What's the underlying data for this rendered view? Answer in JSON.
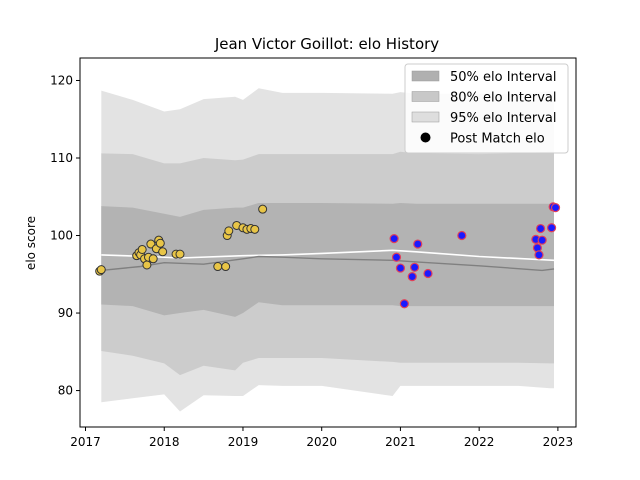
{
  "chart_data": {
    "type": "line",
    "title": "Jean Victor Goillot: elo History",
    "xlabel": "",
    "ylabel": "elo score",
    "xlim": [
      2016.93,
      2023.23
    ],
    "ylim": [
      75.3,
      122.9
    ],
    "x_ticks": [
      2017,
      2018,
      2019,
      2020,
      2021,
      2022,
      2023
    ],
    "y_ticks": [
      80,
      90,
      100,
      110,
      120
    ],
    "grid": false,
    "legend_position": "top-right",
    "legend": [
      {
        "label": "50% elo Interval",
        "kind": "band",
        "color": "#b0b0b0"
      },
      {
        "label": "80% elo Interval",
        "kind": "band",
        "color": "#c8c8c8"
      },
      {
        "label": "95% elo Interval",
        "kind": "band",
        "color": "#dedede"
      },
      {
        "label": "Post Match elo",
        "kind": "marker",
        "color": "#000000"
      }
    ],
    "colors": {
      "band_95": "#e3e3e3",
      "band_80": "#cccccc",
      "band_50": "#b3b3b3",
      "mean_line": "#ffffff",
      "median_line": "#808080",
      "early_marker_fill": "#e8c547",
      "early_marker_edge": "#333333",
      "late_marker_fill": "#1a1aff",
      "late_marker_edge": "#e0405a"
    },
    "bands": {
      "x": [
        2017.2,
        2017.6,
        2018.0,
        2018.2,
        2018.5,
        2018.9,
        2019.0,
        2019.2,
        2019.5,
        2020.0,
        2020.9,
        2021.0,
        2021.2,
        2022.0,
        2022.5,
        2022.9,
        2022.95
      ],
      "p95_hi": [
        118.7,
        117.5,
        116.0,
        116.3,
        117.6,
        117.9,
        117.5,
        119.0,
        118.4,
        118.4,
        118.3,
        118.5,
        118.3,
        118.3,
        118.3,
        118.6,
        118.6
      ],
      "p80_hi": [
        110.6,
        110.5,
        109.3,
        109.3,
        110.0,
        109.7,
        109.8,
        110.5,
        110.5,
        110.5,
        110.5,
        110.8,
        110.6,
        110.5,
        110.6,
        110.8,
        110.8
      ],
      "p50_hi": [
        103.8,
        103.6,
        102.8,
        102.4,
        103.3,
        103.6,
        103.6,
        104.2,
        104.2,
        104.2,
        104.1,
        104.2,
        104.1,
        104.1,
        104.1,
        104.1,
        104.1
      ],
      "p50_lo": [
        91.1,
        90.9,
        89.7,
        90.0,
        90.4,
        89.5,
        90.0,
        91.4,
        91.0,
        91.0,
        91.0,
        90.9,
        90.9,
        90.9,
        90.9,
        90.9,
        90.9
      ],
      "p80_lo": [
        85.1,
        84.5,
        83.5,
        82.0,
        83.2,
        82.6,
        83.6,
        84.2,
        84.2,
        84.2,
        83.7,
        83.6,
        83.6,
        83.6,
        83.6,
        83.5,
        83.5
      ],
      "p95_lo": [
        78.5,
        79.0,
        79.5,
        77.3,
        79.4,
        79.3,
        79.3,
        80.7,
        80.6,
        80.6,
        79.3,
        80.6,
        80.6,
        80.6,
        80.6,
        80.3,
        80.3
      ]
    },
    "series": [
      {
        "line": "mean",
        "x": [
          2017.2,
          2017.8,
          2018.2,
          2019.0,
          2019.5,
          2020.0,
          2020.9,
          2021.2,
          2022.0,
          2022.95
        ],
        "values": [
          97.5,
          97.3,
          97.1,
          97.4,
          97.5,
          97.7,
          98.1,
          97.9,
          97.3,
          96.8
        ]
      },
      {
        "line": "median",
        "x": [
          2017.2,
          2017.7,
          2018.0,
          2018.5,
          2019.0,
          2019.2,
          2019.5,
          2020.0,
          2020.9,
          2021.2,
          2022.0,
          2022.8,
          2022.95
        ],
        "values": [
          95.5,
          96.0,
          96.5,
          96.3,
          97.0,
          97.3,
          97.2,
          97.0,
          96.8,
          96.6,
          96.1,
          95.5,
          95.7
        ]
      }
    ],
    "points_early": {
      "x": [
        2017.18,
        2017.2,
        2017.65,
        2017.68,
        2017.7,
        2017.72,
        2017.75,
        2017.78,
        2017.8,
        2017.83,
        2017.86,
        2017.9,
        2017.93,
        2017.95,
        2017.98,
        2018.15,
        2018.2,
        2018.68,
        2018.78,
        2018.8,
        2018.82,
        2018.92,
        2019.0,
        2019.05,
        2019.1,
        2019.15,
        2019.25
      ],
      "y": [
        95.4,
        95.6,
        97.4,
        97.8,
        97.5,
        98.2,
        97.0,
        96.2,
        97.2,
        98.9,
        97.0,
        98.3,
        99.4,
        99.0,
        97.9,
        97.6,
        97.6,
        96.0,
        96.0,
        100.0,
        100.6,
        101.3,
        101.0,
        100.8,
        100.9,
        100.8,
        103.4
      ]
    },
    "points_late": {
      "x": [
        2020.92,
        2020.95,
        2021.0,
        2021.05,
        2021.15,
        2021.18,
        2021.22,
        2021.35,
        2021.78,
        2022.72,
        2022.74,
        2022.76,
        2022.78,
        2022.8,
        2022.92,
        2022.94,
        2022.97
      ],
      "y": [
        99.6,
        97.2,
        95.8,
        91.2,
        94.7,
        95.9,
        98.9,
        95.1,
        100.0,
        99.5,
        98.4,
        97.5,
        100.9,
        99.4,
        101.0,
        103.7,
        103.6
      ]
    }
  }
}
